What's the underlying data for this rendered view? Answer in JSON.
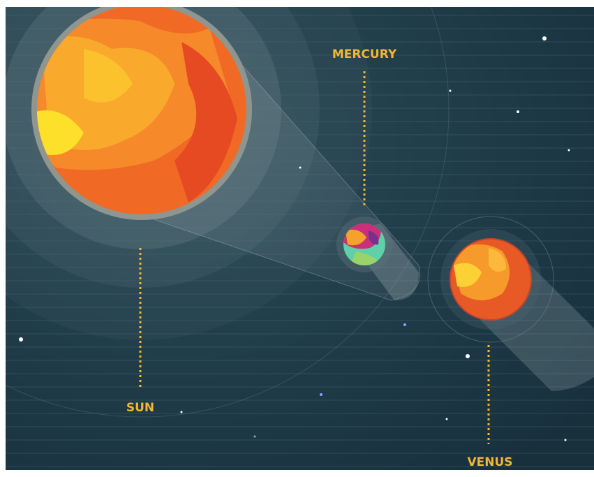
{
  "labels": {
    "sun": "SUN",
    "mercury": "MERCURY",
    "venus": "VENUS"
  }
}
